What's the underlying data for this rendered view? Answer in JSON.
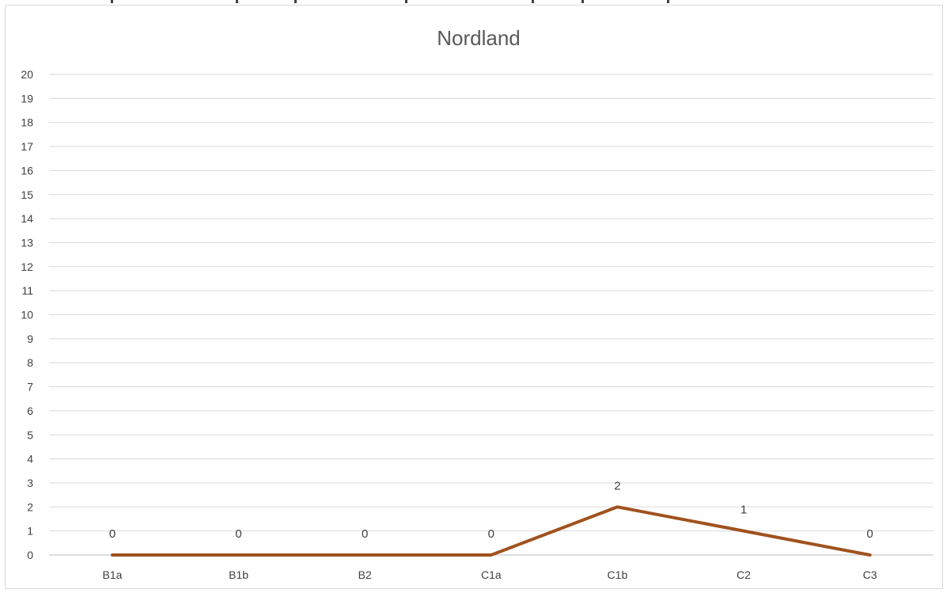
{
  "chart_data": {
    "type": "line",
    "title": "Nordland",
    "categories": [
      "B1a",
      "B1b",
      "B2",
      "C1a",
      "C1b",
      "C2",
      "C3"
    ],
    "series": [
      {
        "values": [
          0,
          0,
          0,
          0,
          2,
          1,
          0
        ],
        "color": "#a0521e"
      }
    ],
    "ylim": [
      0,
      20
    ],
    "yticks": [
      0,
      1,
      2,
      3,
      4,
      5,
      6,
      7,
      8,
      9,
      10,
      11,
      12,
      13,
      14,
      15,
      16,
      17,
      18,
      19,
      20
    ],
    "xlabel": "",
    "ylabel": "",
    "grid": true,
    "data_labels": true,
    "legend": "none"
  }
}
